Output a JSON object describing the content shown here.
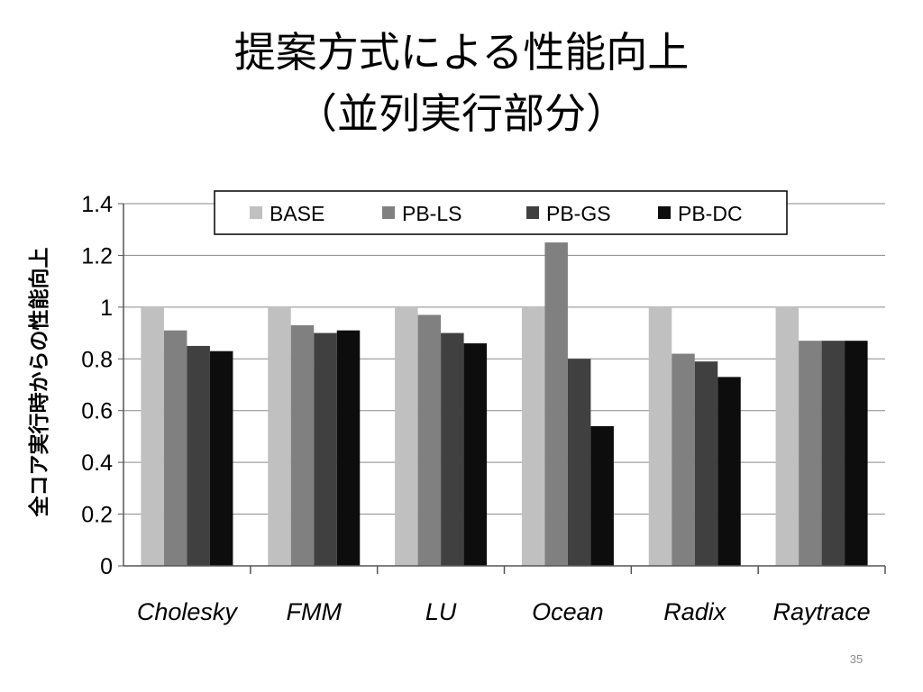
{
  "slide": {
    "title_line1": "提案方式による性能向上",
    "title_line2": "（並列実行部分）",
    "page_number": "35"
  },
  "chart_data": {
    "type": "bar",
    "ylabel": "全コア実行時からの性能向上",
    "xlabel": "",
    "ylim": [
      0,
      1.4
    ],
    "yticks": [
      "0",
      "0.2",
      "0.4",
      "0.6",
      "0.8",
      "1",
      "1.2",
      "1.4"
    ],
    "grid": true,
    "legend_position": "top",
    "categories": [
      "Cholesky",
      "FMM",
      "LU",
      "Ocean",
      "Radix",
      "Raytrace"
    ],
    "series": [
      {
        "name": "BASE",
        "color": "#c0c0c0",
        "values": [
          1.0,
          1.0,
          1.0,
          1.0,
          1.0,
          1.0
        ]
      },
      {
        "name": "PB-LS",
        "color": "#808080",
        "values": [
          0.91,
          0.93,
          0.97,
          1.25,
          0.82,
          0.87
        ]
      },
      {
        "name": "PB-GS",
        "color": "#404040",
        "values": [
          0.85,
          0.9,
          0.9,
          0.8,
          0.79,
          0.87
        ]
      },
      {
        "name": "PB-DC",
        "color": "#0d0d0d",
        "values": [
          0.83,
          0.91,
          0.86,
          0.54,
          0.73,
          0.87
        ]
      }
    ]
  }
}
